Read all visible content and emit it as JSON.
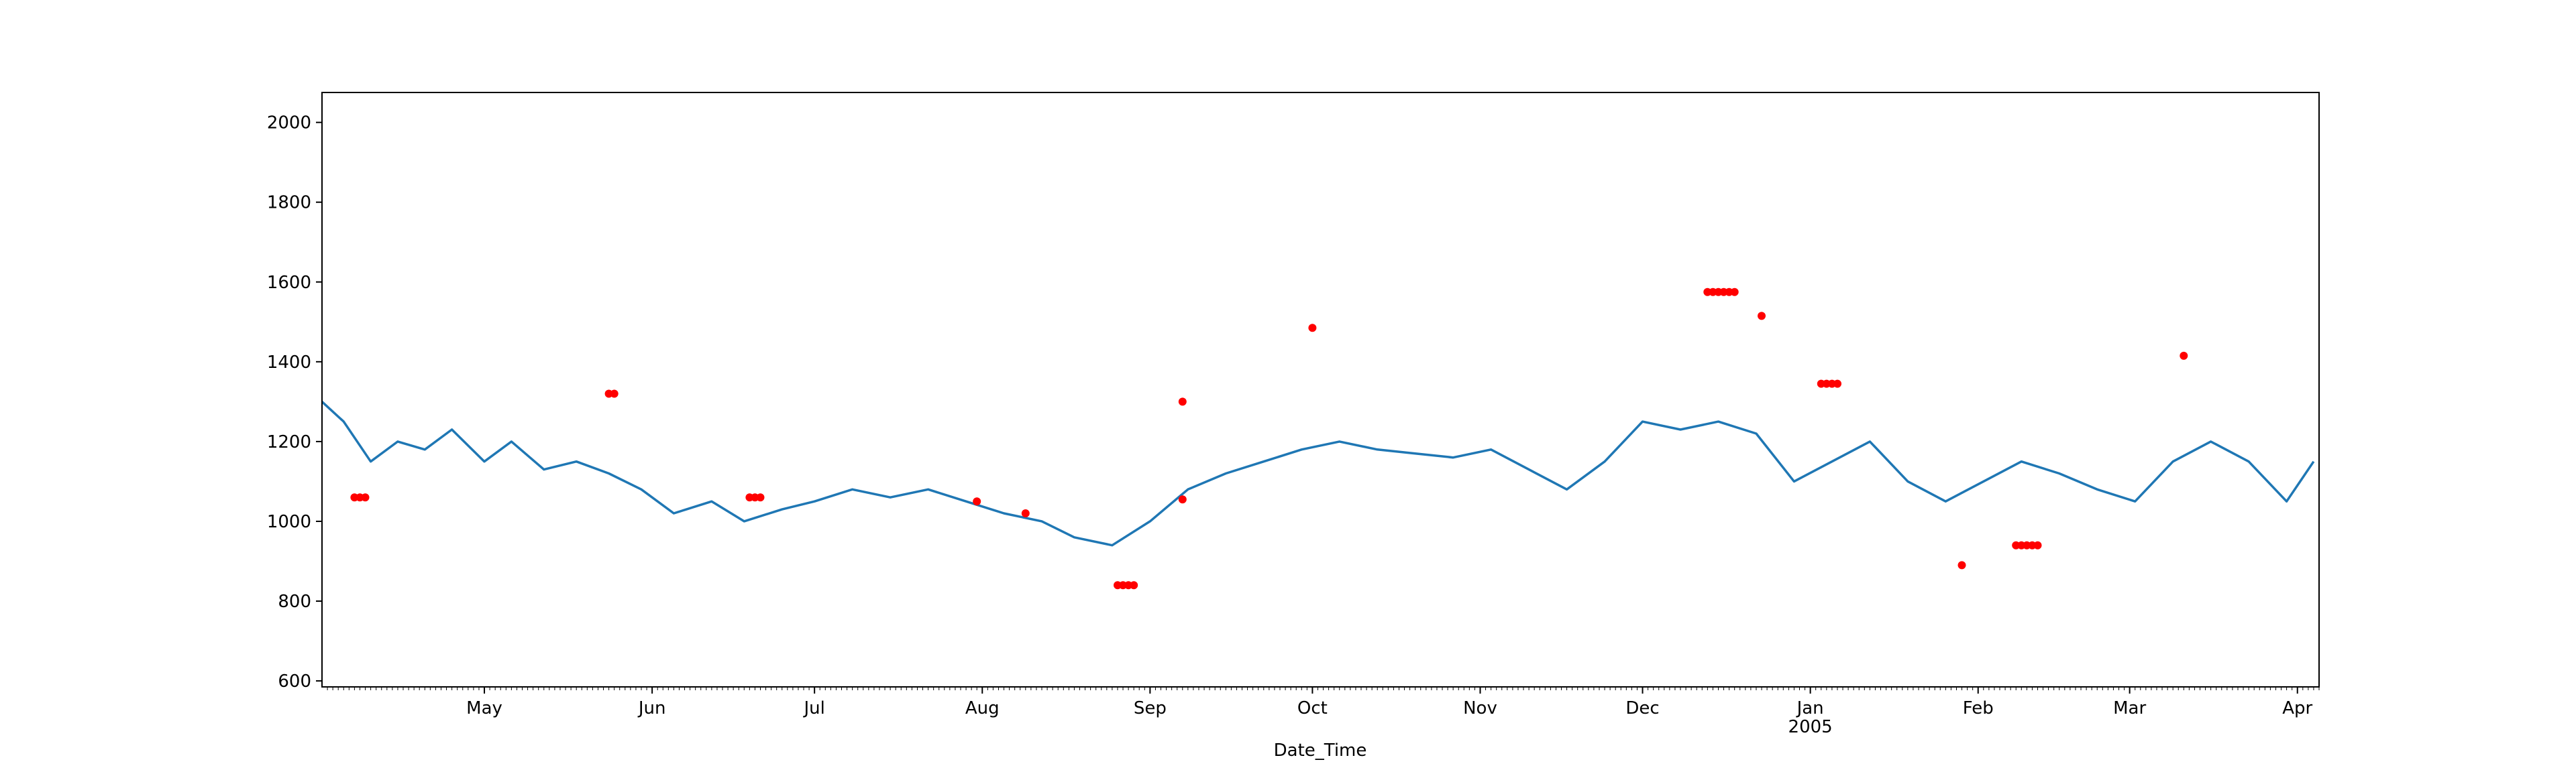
{
  "chart_data": {
    "type": "line",
    "title": "",
    "xlabel": "Date_Time",
    "ylabel": "",
    "grid": false,
    "x_range": [
      "2004-04-01",
      "2005-04-05"
    ],
    "ylim": [
      585,
      2075
    ],
    "y_ticks": [
      600,
      800,
      1000,
      1200,
      1400,
      1600,
      1800,
      2000
    ],
    "x_major_ticks": [
      {
        "date": "2004-05-01",
        "label": "May",
        "sublabel": ""
      },
      {
        "date": "2004-06-01",
        "label": "Jun",
        "sublabel": ""
      },
      {
        "date": "2004-07-01",
        "label": "Jul",
        "sublabel": ""
      },
      {
        "date": "2004-08-01",
        "label": "Aug",
        "sublabel": ""
      },
      {
        "date": "2004-09-01",
        "label": "Sep",
        "sublabel": ""
      },
      {
        "date": "2004-10-01",
        "label": "Oct",
        "sublabel": ""
      },
      {
        "date": "2004-11-01",
        "label": "Nov",
        "sublabel": ""
      },
      {
        "date": "2004-12-01",
        "label": "Dec",
        "sublabel": ""
      },
      {
        "date": "2005-01-01",
        "label": "Jan",
        "sublabel": "2005"
      },
      {
        "date": "2005-02-01",
        "label": "Feb",
        "sublabel": ""
      },
      {
        "date": "2005-03-01",
        "label": "Mar",
        "sublabel": ""
      },
      {
        "date": "2005-04-01",
        "label": "Apr",
        "sublabel": ""
      }
    ],
    "series": [
      {
        "color": "#1f77b4",
        "values": [
          [
            "2004-04-01",
            1300
          ],
          [
            "2004-04-05",
            1250
          ],
          [
            "2004-04-10",
            1150
          ],
          [
            "2004-04-15",
            1200
          ],
          [
            "2004-04-20",
            1180
          ],
          [
            "2004-04-25",
            1230
          ],
          [
            "2004-05-01",
            1150
          ],
          [
            "2004-05-06",
            1200
          ],
          [
            "2004-05-12",
            1130
          ],
          [
            "2004-05-18",
            1150
          ],
          [
            "2004-05-24",
            1120
          ],
          [
            "2004-05-30",
            1080
          ],
          [
            "2004-06-05",
            1020
          ],
          [
            "2004-06-12",
            1050
          ],
          [
            "2004-06-18",
            1000
          ],
          [
            "2004-06-25",
            1030
          ],
          [
            "2004-07-01",
            1050
          ],
          [
            "2004-07-08",
            1080
          ],
          [
            "2004-07-15",
            1060
          ],
          [
            "2004-07-22",
            1080
          ],
          [
            "2004-07-29",
            1050
          ],
          [
            "2004-08-05",
            1020
          ],
          [
            "2004-08-12",
            1000
          ],
          [
            "2004-08-18",
            960
          ],
          [
            "2004-08-25",
            940
          ],
          [
            "2004-09-01",
            1000
          ],
          [
            "2004-09-08",
            1080
          ],
          [
            "2004-09-15",
            1120
          ],
          [
            "2004-09-22",
            1150
          ],
          [
            "2004-09-29",
            1180
          ],
          [
            "2004-10-06",
            1200
          ],
          [
            "2004-10-13",
            1180
          ],
          [
            "2004-10-20",
            1170
          ],
          [
            "2004-10-27",
            1160
          ],
          [
            "2004-11-03",
            1180
          ],
          [
            "2004-11-10",
            1130
          ],
          [
            "2004-11-17",
            1080
          ],
          [
            "2004-11-24",
            1150
          ],
          [
            "2004-12-01",
            1250
          ],
          [
            "2004-12-08",
            1230
          ],
          [
            "2004-12-15",
            1250
          ],
          [
            "2004-12-22",
            1220
          ],
          [
            "2004-12-29",
            1100
          ],
          [
            "2005-01-05",
            1150
          ],
          [
            "2005-01-12",
            1200
          ],
          [
            "2005-01-19",
            1100
          ],
          [
            "2005-01-26",
            1050
          ],
          [
            "2005-02-02",
            1100
          ],
          [
            "2005-02-09",
            1150
          ],
          [
            "2005-02-16",
            1120
          ],
          [
            "2005-02-23",
            1080
          ],
          [
            "2005-03-02",
            1050
          ],
          [
            "2005-03-09",
            1150
          ],
          [
            "2005-03-16",
            1200
          ],
          [
            "2005-03-23",
            1150
          ],
          [
            "2005-03-30",
            1050
          ],
          [
            "2005-04-04",
            1150
          ]
        ]
      },
      {
        "color": "#ff0000",
        "marker": "dot",
        "values": [
          [
            "2004-04-07",
            1060
          ],
          [
            "2004-04-08",
            1060
          ],
          [
            "2004-04-09",
            1060
          ],
          [
            "2004-05-24",
            1320
          ],
          [
            "2004-05-25",
            1320
          ],
          [
            "2004-06-19",
            1060
          ],
          [
            "2004-06-20",
            1060
          ],
          [
            "2004-06-21",
            1060
          ],
          [
            "2004-07-31",
            1050
          ],
          [
            "2004-08-09",
            1020
          ],
          [
            "2004-08-26",
            840
          ],
          [
            "2004-08-27",
            840
          ],
          [
            "2004-08-28",
            840
          ],
          [
            "2004-08-29",
            840
          ],
          [
            "2004-09-07",
            1300
          ],
          [
            "2004-09-07",
            1055
          ],
          [
            "2004-10-01",
            1485
          ],
          [
            "2004-12-13",
            1575
          ],
          [
            "2004-12-14",
            1575
          ],
          [
            "2004-12-15",
            1575
          ],
          [
            "2004-12-16",
            1575
          ],
          [
            "2004-12-17",
            1575
          ],
          [
            "2004-12-18",
            1575
          ],
          [
            "2004-12-23",
            1515
          ],
          [
            "2005-01-03",
            1345
          ],
          [
            "2005-01-04",
            1345
          ],
          [
            "2005-01-05",
            1345
          ],
          [
            "2005-01-06",
            1345
          ],
          [
            "2005-01-29",
            890
          ],
          [
            "2005-02-08",
            940
          ],
          [
            "2005-02-09",
            940
          ],
          [
            "2005-02-10",
            940
          ],
          [
            "2005-02-11",
            940
          ],
          [
            "2005-02-12",
            940
          ],
          [
            "2005-03-11",
            1415
          ]
        ]
      }
    ]
  }
}
